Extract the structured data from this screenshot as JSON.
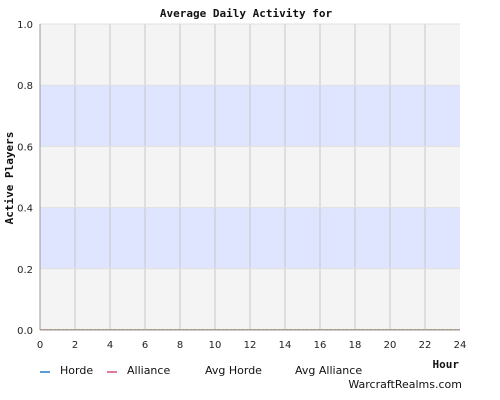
{
  "chart_data": {
    "type": "line",
    "title": "Average Daily Activity for",
    "xlabel": "Hour",
    "ylabel": "Active Players",
    "xlim": [
      0,
      24
    ],
    "ylim": [
      0,
      1.0
    ],
    "x_ticks": [
      "0",
      "2",
      "4",
      "6",
      "8",
      "10",
      "12",
      "14",
      "16",
      "18",
      "20",
      "22",
      "24"
    ],
    "y_ticks": [
      "0.0",
      "0.2",
      "0.4",
      "0.6",
      "0.8",
      "1.0"
    ],
    "grid": true,
    "band_color": "#dfe4ff",
    "plot_bg": "#f4f4f4",
    "x": [
      0,
      1,
      2,
      3,
      4,
      5,
      6,
      7,
      8,
      9,
      10,
      11,
      12,
      13,
      14,
      15,
      16,
      17,
      18,
      19,
      20,
      21,
      22,
      23,
      24
    ],
    "series": [
      {
        "name": "Horde",
        "color": "#5b9bd5",
        "values": [
          0,
          0,
          0,
          0,
          0,
          0,
          0,
          0,
          0,
          0,
          0,
          0,
          0,
          0,
          0,
          0,
          0,
          0,
          0,
          0,
          0,
          0,
          0,
          0,
          0
        ]
      },
      {
        "name": "Alliance",
        "color": "#e07a9a",
        "values": [
          0,
          0,
          0,
          0,
          0,
          0,
          0,
          0,
          0,
          0,
          0,
          0,
          0,
          0,
          0,
          0,
          0,
          0,
          0,
          0,
          0,
          0,
          0,
          0,
          0
        ]
      },
      {
        "name": "Avg Horde",
        "color": "#7fbf7f",
        "values": [
          0,
          0,
          0,
          0,
          0,
          0,
          0,
          0,
          0,
          0,
          0,
          0,
          0,
          0,
          0,
          0,
          0,
          0,
          0,
          0,
          0,
          0,
          0,
          0,
          0
        ]
      },
      {
        "name": "Avg Alliance",
        "color": "#99cc66",
        "values": [
          0,
          0,
          0,
          0,
          0,
          0,
          0,
          0,
          0,
          0,
          0,
          0,
          0,
          0,
          0,
          0,
          0,
          0,
          0,
          0,
          0,
          0,
          0,
          0,
          0
        ]
      }
    ],
    "legend_placement": "bottom"
  },
  "footer": {
    "credit": "WarcraftRealms.com"
  }
}
